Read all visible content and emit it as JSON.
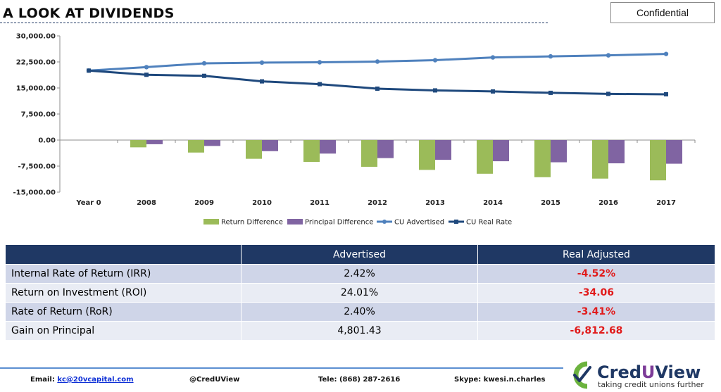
{
  "header": {
    "title": "A LOOK AT DIVIDENDS",
    "title_glyphs": "     ",
    "confidential": "Confidential"
  },
  "chart_data": {
    "type": "bar",
    "combo": "clustered bars + lines",
    "categories": [
      "Year 0",
      "2008",
      "2009",
      "2010",
      "2011",
      "2012",
      "2013",
      "2014",
      "2015",
      "2016",
      "2017"
    ],
    "ylim": [
      -15000,
      30000
    ],
    "yticks": [
      "30,000.00",
      "22,500.00",
      "15,000.00",
      "7,500.00",
      "0.00",
      "-7,500.00",
      "-15,000.00"
    ],
    "ytick_values": [
      30000,
      22500,
      15000,
      7500,
      0,
      -7500,
      -15000
    ],
    "grid": false,
    "legend_position": "bottom",
    "series": [
      {
        "name": "Return Difference",
        "kind": "bar",
        "color": "#9bbb59",
        "values": [
          0,
          -2100,
          -3600,
          -5400,
          -6300,
          -7700,
          -8600,
          -9700,
          -10700,
          -11100,
          -11600
        ]
      },
      {
        "name": "Principal Difference",
        "kind": "bar",
        "color": "#8064a2",
        "values": [
          0,
          -1200,
          -1700,
          -3200,
          -3900,
          -5200,
          -5700,
          -6100,
          -6400,
          -6700,
          -6813
        ]
      },
      {
        "name": "CU Advertised",
        "kind": "line",
        "marker": "circle",
        "color": "#4f81bd",
        "values": [
          20000,
          21000,
          22100,
          22300,
          22400,
          22600,
          23000,
          23800,
          24100,
          24400,
          24801
        ]
      },
      {
        "name": "CU Real Rate",
        "kind": "line",
        "marker": "square",
        "color": "#1f497d",
        "values": [
          20000,
          18800,
          18500,
          16900,
          16100,
          14800,
          14300,
          14000,
          13600,
          13300,
          13187
        ]
      }
    ]
  },
  "table": {
    "headers": [
      "",
      "Advertised",
      "Real Adjusted"
    ],
    "rows": [
      {
        "metric": "Internal Rate of Return (IRR)",
        "advertised": "2.42%",
        "real": "-4.52%"
      },
      {
        "metric": "Return on Investment (ROI)",
        "advertised": "24.01%",
        "real": "-34.06"
      },
      {
        "metric": "Rate of Return (RoR)",
        "advertised": "2.40%",
        "real": "-3.41%"
      },
      {
        "metric": "Gain on Principal",
        "advertised": "4,801.43",
        "real": "-6,812.68"
      }
    ]
  },
  "footer": {
    "email_label": "Email:",
    "email": "kc@20vcapital.com",
    "handle": "@CredUView",
    "phone": "Tele: (868) 287-2616",
    "skype": "Skype: kwesi.n.charles"
  },
  "logo": {
    "name_cred": "Cred",
    "name_u": "U",
    "name_view": "View",
    "tagline": "taking credit unions further",
    "colors": {
      "green": "#6cb33e",
      "navy": "#1f3864",
      "purple": "#7d3c98"
    }
  }
}
